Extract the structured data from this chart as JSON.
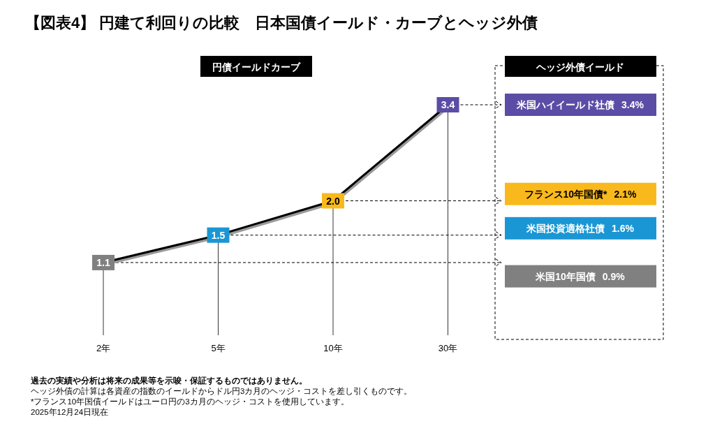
{
  "chart_data": [
    {
      "type": "line",
      "title": "【図表4】 円建て利回りの比較　日本国債イールド・カーブとヘッジ外債",
      "subtitle": "円債イールドカーブ",
      "categories": [
        "2年",
        "5年",
        "10年",
        "30年"
      ],
      "values": [
        1.1,
        1.5,
        2.0,
        3.4
      ],
      "value_labels": [
        "1.1",
        "1.5",
        "2.0",
        "3.4"
      ],
      "color": "#000000",
      "colors": [
        "#808080",
        "#1b96d4",
        "#f9b91c",
        "#5b4da6"
      ],
      "marker": "square",
      "annotations": [
        "**過去の実績や分析は将来の成果等を示唆・保証するものではありません。**",
        "ヘッジ外債の計算は各資産の指数のイールドからドル円3カ月のヘッジ・コストを差し引くものです。",
        "*フランス10年国債イールドはユーロ円の3カ月のヘッジ・コストを使用しています。",
        "2025年12月24日現在"
      ]
    },
    {
      "type": "other",
      "title": "ヘッジ外債イールド",
      "categories": [
        "米国ハイイールド社債",
        "フランス10年国債*",
        "米国投資適格社債",
        "米国10年国債"
      ],
      "values": [
        3.4,
        2.1,
        1.6,
        0.9
      ],
      "value_labels": [
        "3.4%",
        "2.1%",
        "1.6%",
        "0.9%"
      ],
      "colors": [
        "#5b4da6",
        "#f9b91c",
        "#1b96d4",
        "#808080"
      ]
    }
  ]
}
